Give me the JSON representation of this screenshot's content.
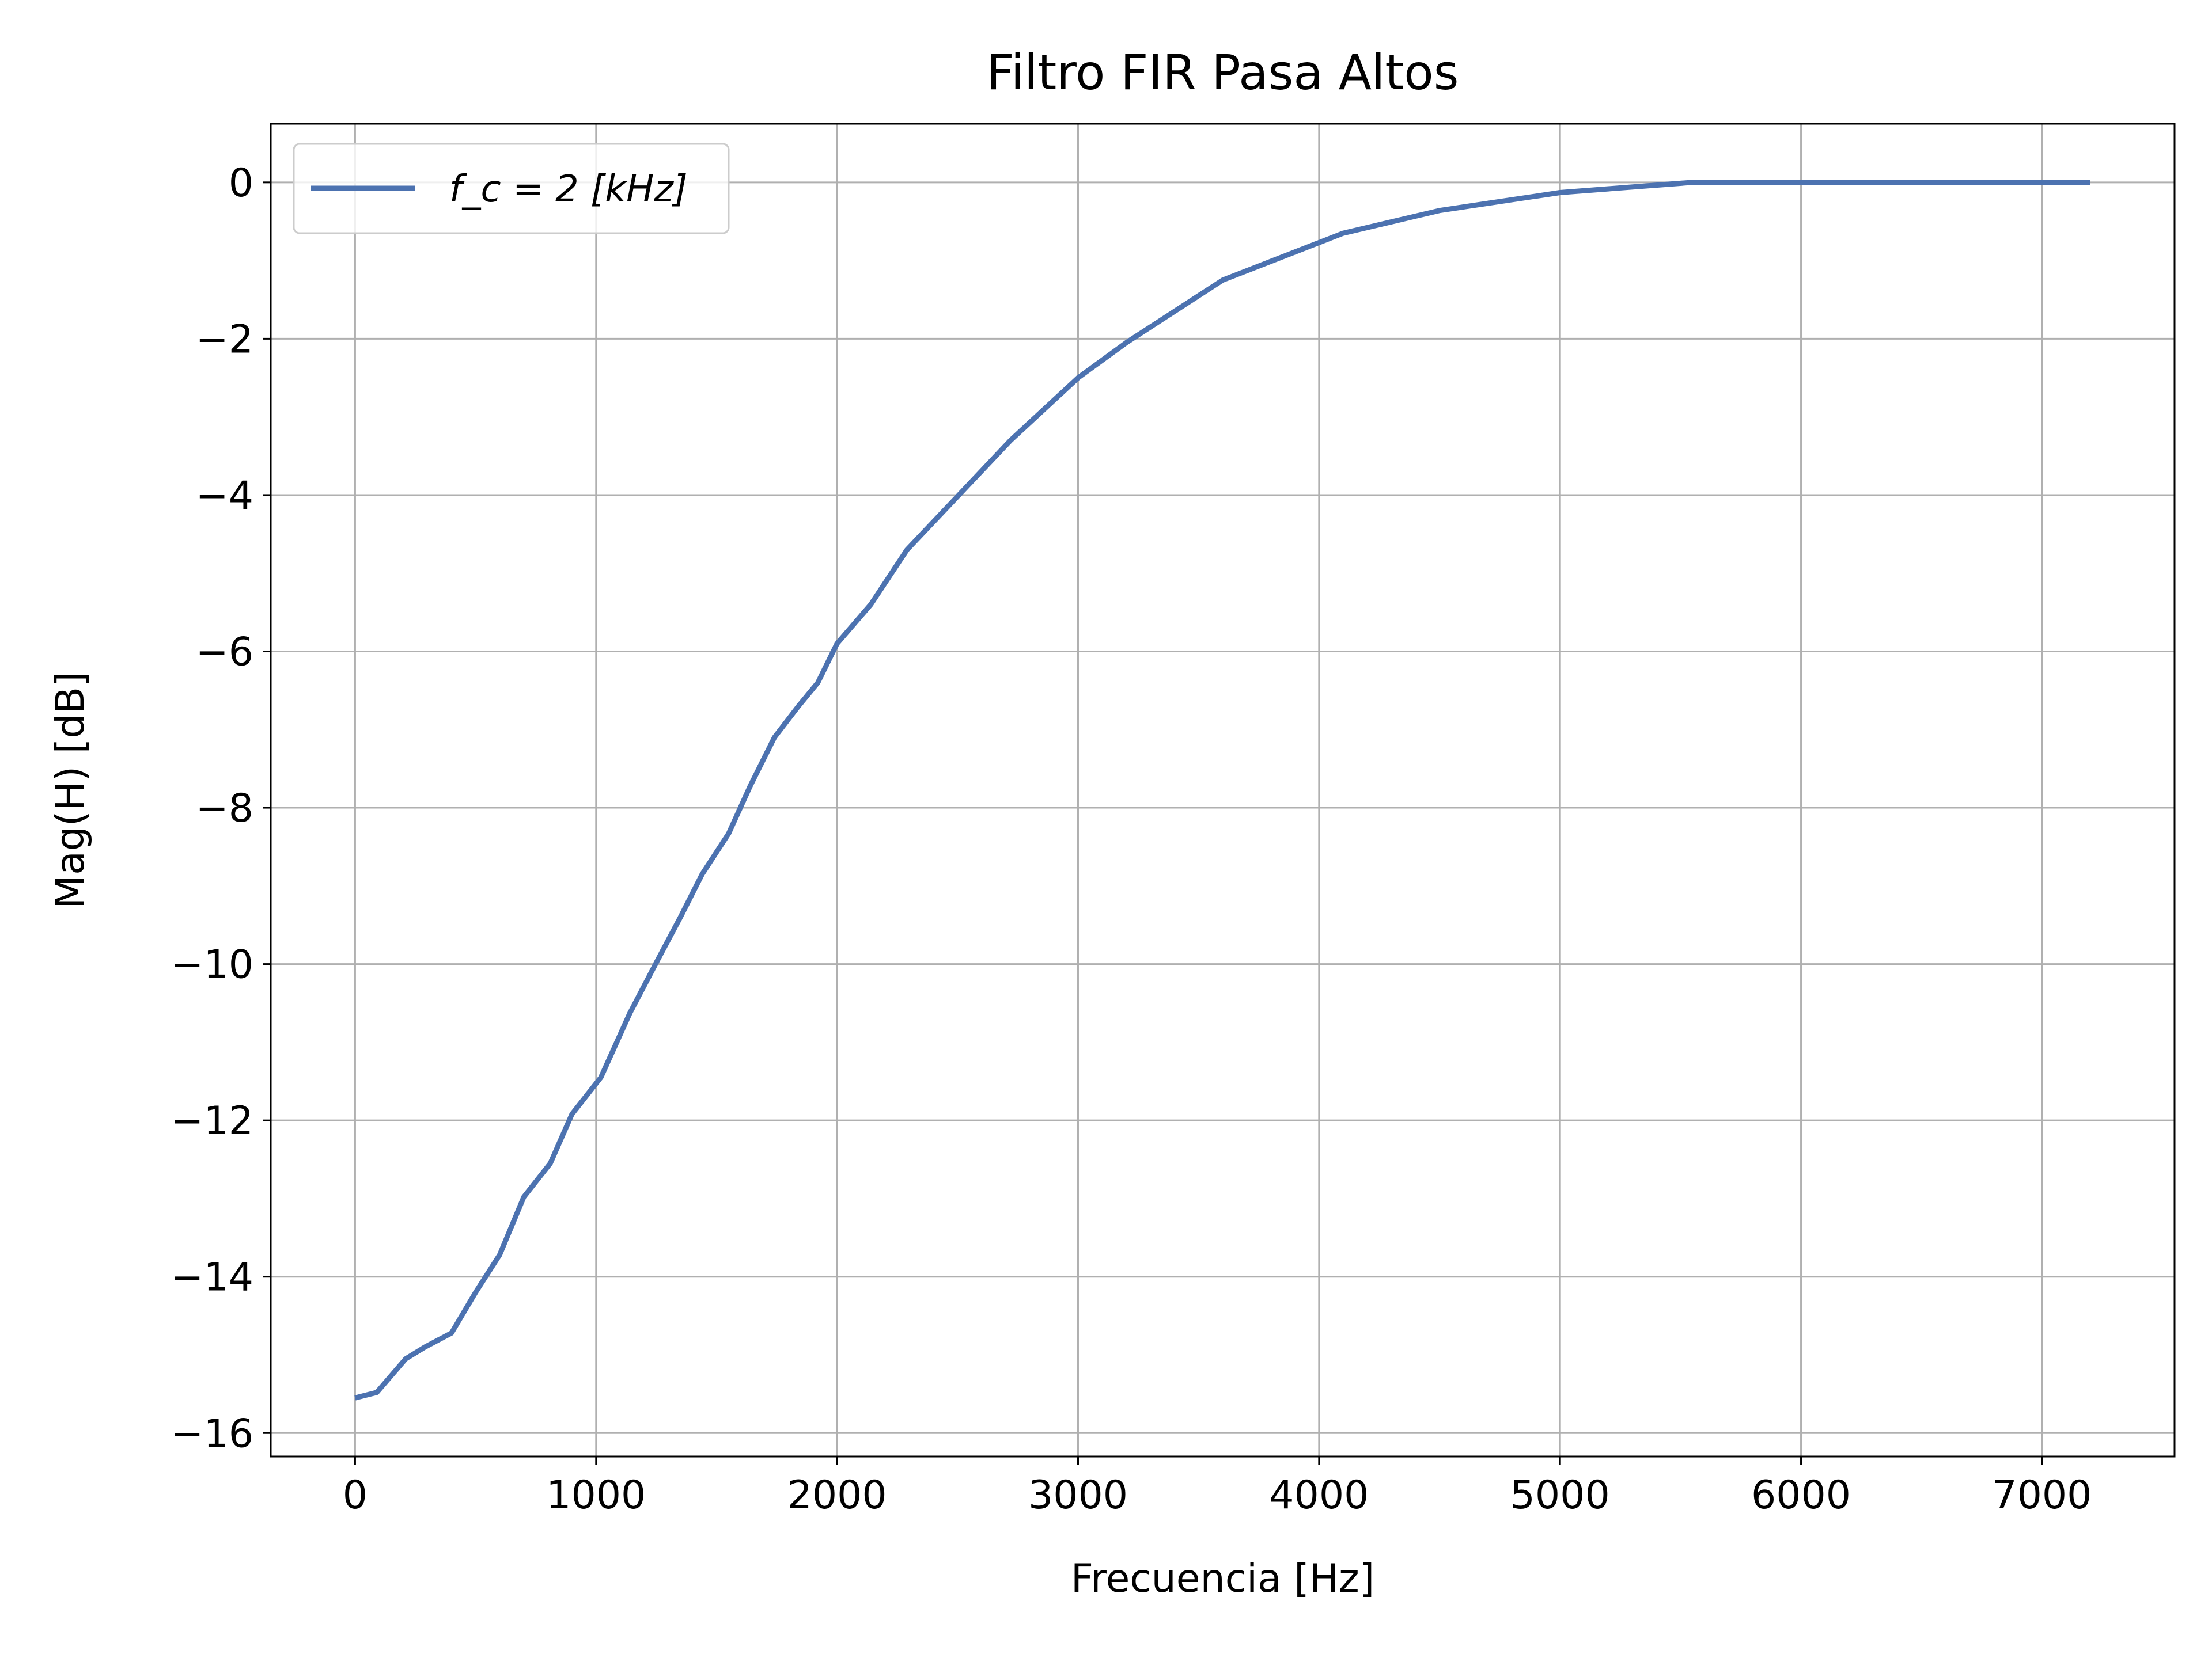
{
  "chart_data": {
    "type": "line",
    "title": "Filtro FIR Pasa Altos",
    "xlabel": "Frecuencia [Hz]",
    "ylabel": "Mag(H) [dB]",
    "xlim": [
      -350,
      7550
    ],
    "ylim": [
      -16.3,
      0.75
    ],
    "xticks": [
      0,
      1000,
      2000,
      3000,
      4000,
      5000,
      6000,
      7000
    ],
    "xtick_labels": [
      "0",
      "1000",
      "2000",
      "3000",
      "4000",
      "5000",
      "6000",
      "7000"
    ],
    "yticks": [
      0,
      -2,
      -4,
      -6,
      -8,
      -10,
      -12,
      -14,
      -16
    ],
    "ytick_labels": [
      "0",
      "−2",
      "−4",
      "−6",
      "−8",
      "−10",
      "−12",
      "−14",
      "−16"
    ],
    "grid": true,
    "legend_position": "top-left",
    "series": [
      {
        "name": "f_c = 2 [kHz]",
        "color": "#4c72b0",
        "x": [
          0,
          90,
          210,
          290,
          400,
          500,
          600,
          700,
          810,
          900,
          1020,
          1140,
          1250,
          1350,
          1440,
          1550,
          1640,
          1740,
          1840,
          1920,
          2000,
          2140,
          2290,
          2490,
          2720,
          3000,
          3200,
          3600,
          4100,
          4500,
          5000,
          5550,
          6000,
          6500,
          7000,
          7200
        ],
        "y": [
          -15.55,
          -15.48,
          -15.05,
          -14.9,
          -14.72,
          -14.2,
          -13.72,
          -12.98,
          -12.55,
          -11.92,
          -11.45,
          -10.63,
          -9.98,
          -9.4,
          -8.85,
          -8.33,
          -7.72,
          -7.1,
          -6.7,
          -6.4,
          -5.9,
          -5.4,
          -4.7,
          -4.05,
          -3.3,
          -2.5,
          -2.05,
          -1.25,
          -0.65,
          -0.36,
          -0.13,
          0.0,
          0.0,
          0.0,
          0.0,
          0.0
        ]
      }
    ]
  }
}
